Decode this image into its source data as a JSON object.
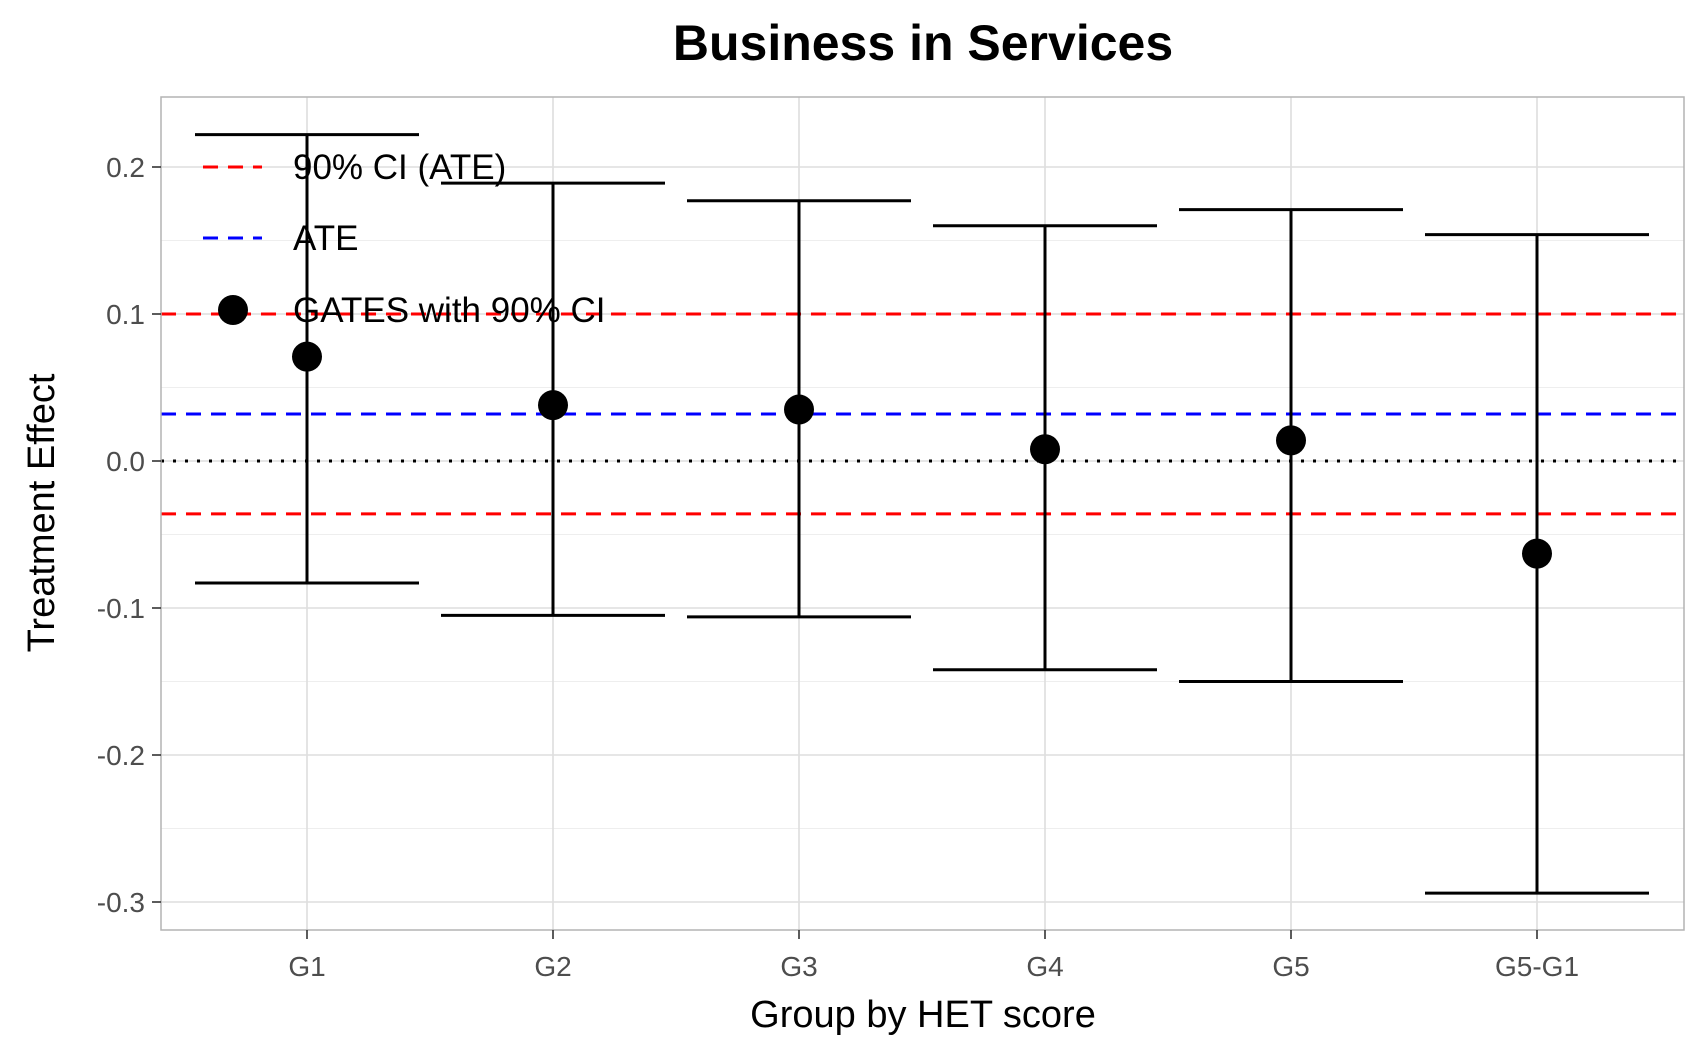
{
  "chart_data": {
    "type": "scatter",
    "title": "Business in Services",
    "xlabel": "Group by HET score",
    "ylabel": "Treatment Effect",
    "categories": [
      "G1",
      "G2",
      "G3",
      "G4",
      "G5",
      "G5-G1"
    ],
    "ylim": [
      -0.32,
      0.245
    ],
    "yticks": [
      0.2,
      0.1,
      0.0,
      -0.1,
      -0.2,
      -0.3
    ],
    "ytick_labels": [
      "0.2",
      "0.1",
      "0.0",
      "-0.1",
      "-0.2",
      "-0.3"
    ],
    "grid": true,
    "legend_position": "top-left",
    "series": [
      {
        "name": "GATES with 90% CI",
        "values": [
          0.071,
          0.038,
          0.035,
          0.008,
          0.014,
          -0.063
        ],
        "ci_lower": [
          -0.083,
          -0.105,
          -0.106,
          -0.142,
          -0.15,
          -0.294
        ],
        "ci_upper": [
          0.222,
          0.189,
          0.177,
          0.16,
          0.171,
          0.154
        ],
        "color": "#000000"
      }
    ],
    "reference_lines": [
      {
        "name": "ATE",
        "value": 0.032,
        "color": "#0000ff",
        "style": "dashed"
      },
      {
        "name": "90% CI (ATE)",
        "values": [
          -0.036,
          0.1
        ],
        "color": "#ff0000",
        "style": "dashed"
      },
      {
        "value": 0.0,
        "color": "#000000",
        "style": "dotted"
      }
    ],
    "legend": [
      {
        "label": "90% CI (ATE)",
        "key": "dashed-line",
        "color": "#ff0000"
      },
      {
        "label": "ATE",
        "key": "dashed-line",
        "color": "#0000ff"
      },
      {
        "label": "GATES with 90% CI",
        "key": "point",
        "color": "#000000"
      }
    ]
  }
}
